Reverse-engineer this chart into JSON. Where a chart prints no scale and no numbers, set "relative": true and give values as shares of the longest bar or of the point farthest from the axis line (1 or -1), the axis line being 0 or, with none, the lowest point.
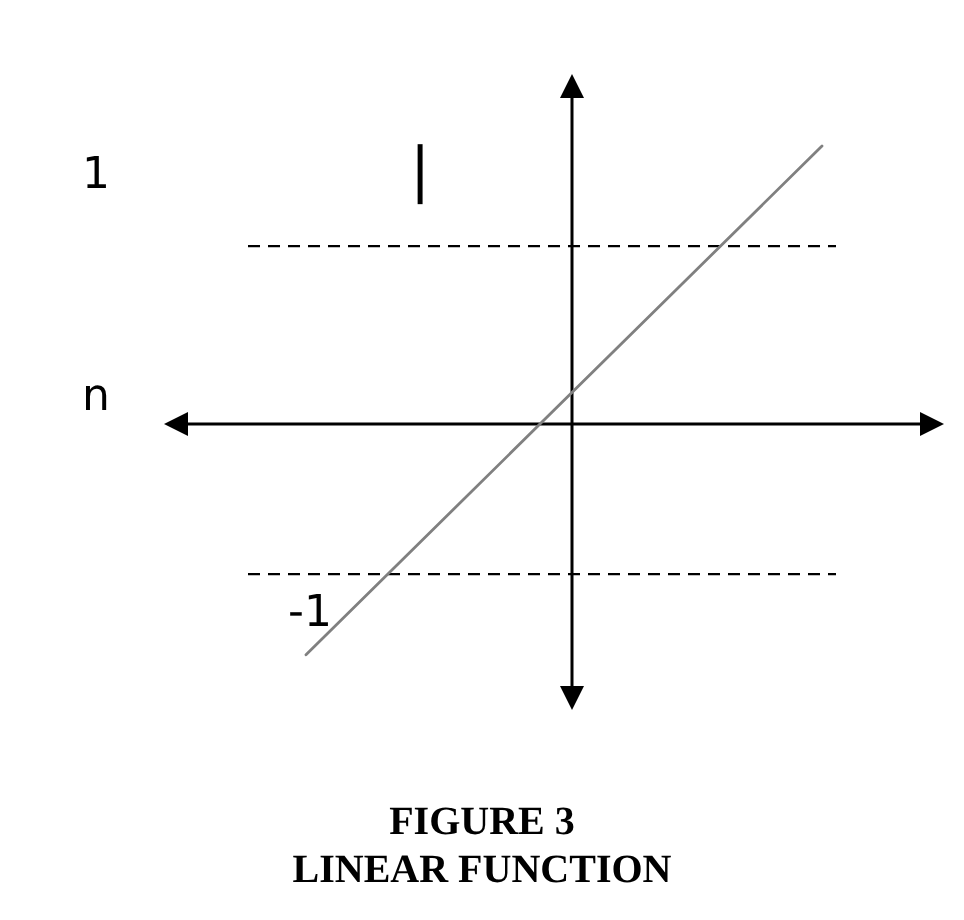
{
  "chart_data": {
    "type": "line",
    "title": "FIGURE 3",
    "subtitle": "LINEAR FUNCTION",
    "relative": true,
    "categories": [
      null,
      null
    ],
    "series": [
      {
        "color": "#808080",
        "values": [
          -0.83,
          1
        ]
      }
    ],
    "ref_lines": [
      {
        "axis": "y",
        "value": 0.64,
        "color": "#000000",
        "line_style": "dashed"
      },
      {
        "axis": "y",
        "value": -0.54,
        "color": "#000000",
        "line_style": "dashed"
      }
    ],
    "annotations": [
      "1",
      "n",
      "-1",
      "|"
    ]
  }
}
